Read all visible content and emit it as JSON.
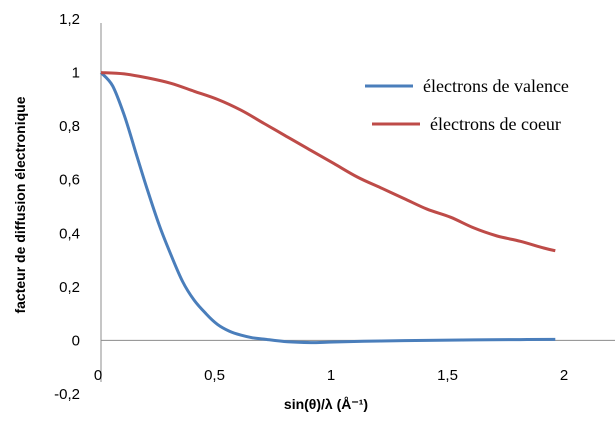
{
  "chart_data": {
    "type": "line",
    "title": "",
    "xlabel": "sin(θ)/λ (Å⁻¹)",
    "ylabel": "facteur de diffusion électronique",
    "xlim": [
      0,
      2
    ],
    "ylim": [
      -0.2,
      1.2
    ],
    "xticks": [
      0,
      0.5,
      1,
      1.5,
      2
    ],
    "xtick_labels": [
      "0",
      "0,5",
      "1",
      "1,5",
      "2"
    ],
    "yticks": [
      -0.2,
      0,
      0.2,
      0.4,
      0.6,
      0.8,
      1,
      1.2
    ],
    "ytick_labels": [
      "-0,2",
      "0",
      "0,2",
      "0,4",
      "0,6",
      "0,8",
      "1",
      "1,2"
    ],
    "grid": false,
    "legend": "right",
    "series": [
      {
        "name": "électrons de valence",
        "color": "#4a7ebb",
        "x": [
          0,
          0.05,
          0.1,
          0.15,
          0.2,
          0.25,
          0.3,
          0.35,
          0.4,
          0.45,
          0.5,
          0.55,
          0.6,
          0.65,
          0.7,
          0.8,
          0.9,
          1.0,
          1.2,
          1.4,
          1.6,
          1.8,
          1.95
        ],
        "y": [
          1.0,
          0.95,
          0.84,
          0.7,
          0.56,
          0.43,
          0.32,
          0.22,
          0.15,
          0.1,
          0.06,
          0.035,
          0.02,
          0.01,
          0.005,
          -0.005,
          -0.008,
          -0.006,
          -0.002,
          0.0,
          0.002,
          0.003,
          0.004
        ]
      },
      {
        "name": "électrons de coeur",
        "color": "#be4b48",
        "x": [
          0,
          0.1,
          0.2,
          0.3,
          0.4,
          0.5,
          0.6,
          0.7,
          0.8,
          0.9,
          1.0,
          1.1,
          1.2,
          1.3,
          1.4,
          1.5,
          1.6,
          1.7,
          1.8,
          1.9,
          1.95
        ],
        "y": [
          1.0,
          0.995,
          0.98,
          0.96,
          0.93,
          0.9,
          0.86,
          0.81,
          0.76,
          0.71,
          0.66,
          0.61,
          0.57,
          0.53,
          0.49,
          0.46,
          0.42,
          0.39,
          0.37,
          0.345,
          0.335
        ]
      }
    ]
  }
}
